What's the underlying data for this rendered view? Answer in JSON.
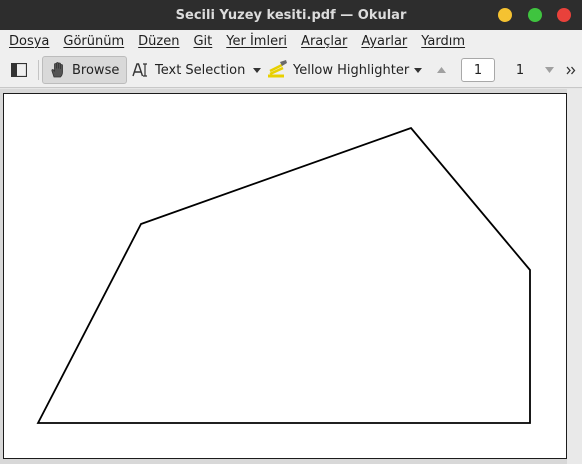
{
  "window": {
    "title": "Secili Yuzey kesiti.pdf — Okular"
  },
  "menubar": {
    "items": [
      "Dosya",
      "Görünüm",
      "Düzen",
      "Git",
      "Yer İmleri",
      "Araçlar",
      "Ayarlar",
      "Yardım"
    ]
  },
  "toolbar": {
    "browse_label": "Browse",
    "text_selection_label": "Text Selection",
    "highlighter_label": "Yellow Highlighter",
    "page_current": "1",
    "page_total": "1"
  },
  "icons": {
    "sidebar": "sidebar-toggle-icon",
    "browse": "hand-icon",
    "text_selection": "text-cursor-icon",
    "highlighter": "highlighter-icon",
    "prev": "chevron-up-icon",
    "next": "chevron-down-icon",
    "more": "double-chevron-right-icon"
  },
  "colors": {
    "titlebar": "#2d2d2d",
    "minimize": "#f5c231",
    "maximize": "#3fc43f",
    "close": "#e9413b",
    "highlighter": "#e8d000"
  }
}
